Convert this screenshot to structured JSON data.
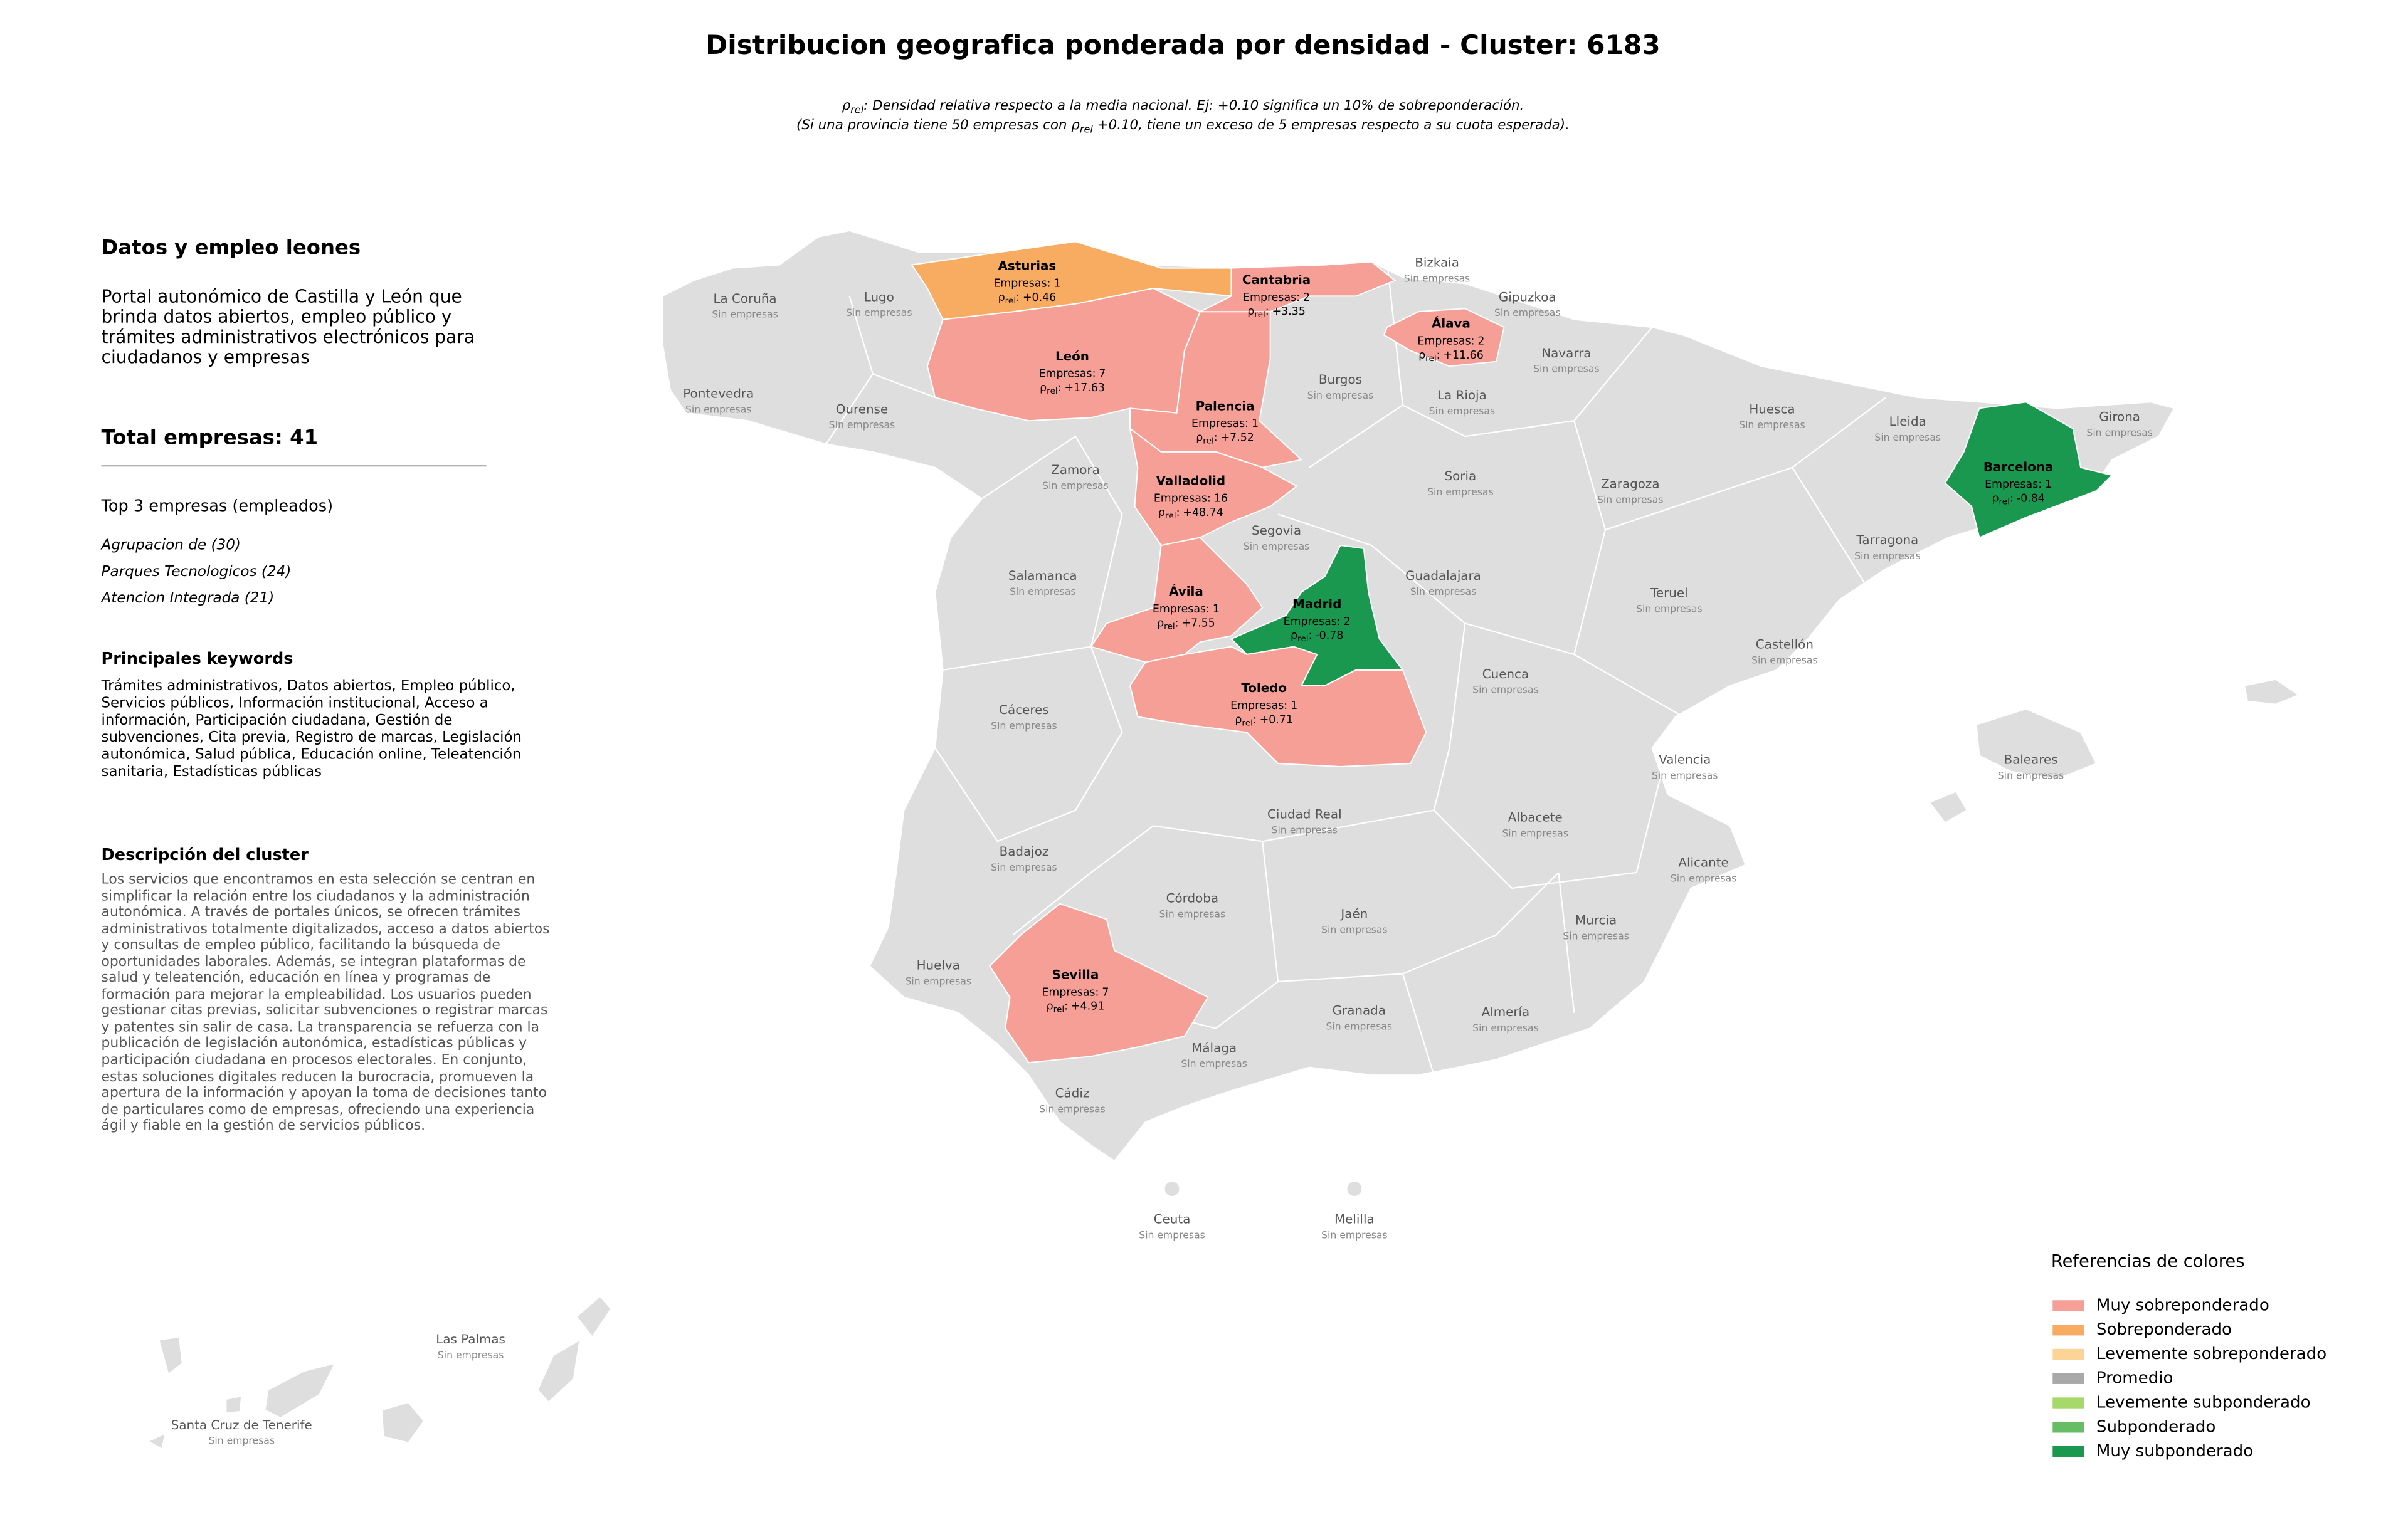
{
  "title": "Distribucion geografica ponderada por densidad - Cluster: 6183",
  "note": [
    [
      {
        "text": "ρ"
      },
      {
        "sub": "rel"
      },
      {
        "text": ": Densidad relativa respecto a la media nacional. Ej: +0.10 significa un 10% de sobreponderación."
      }
    ],
    [
      {
        "text": "(Si una provincia tiene 50 empresas con ρ"
      },
      {
        "sub": "rel"
      },
      {
        "text": " +0.10, tiene un exceso de 5 empresas respecto a su cuota esperada)."
      }
    ]
  ],
  "sidebar": {
    "heading": "Datos y empleo leones",
    "description": "Portal autonómico de Castilla y León que brinda datos abiertos, empleo público y trámites administrativos electrónicos para ciudadanos y empresas",
    "total_label": "Total empresas:",
    "total": 41,
    "top_title": "Top 3 empresas (empleados)",
    "top": [
      "Agrupacion de (30)",
      "Parques Tecnologicos (24)",
      "Atencion Integrada (21)"
    ],
    "keywords_title": "Principales keywords",
    "keywords": "Trámites administrativos, Datos abiertos, Empleo público, Servicios públicos, Información institucional, Acceso a información, Participación ciudadana, Gestión de subvenciones, Cita previa, Registro de marcas, Legislación autonómica, Salud pública, Educación online, Teleatención sanitaria, Estadísticas públicas",
    "cluster_title": "Descripción del cluster",
    "cluster_text": "Los servicios que encontramos en esta selección se centran en simplificar la relación entre los ciudadanos y la administración autonómica. A través de portales únicos, se ofrecen trámites administrativos totalmente digitalizados, acceso a datos abiertos y consultas de empleo público, facilitando la búsqueda de oportunidades laborales. Además, se integran plataformas de salud y teleatención, educación en línea y programas de formación para mejorar la empleabilidad. Los usuarios pueden gestionar citas previas, solicitar subvenciones o registrar marcas y patentes sin salir de casa. La transparencia se refuerza con la publicación de legislación autonómica, estadísticas públicas y participación ciudadana en procesos electorales. En conjunto, estas soluciones digitales reducen la burocracia, promueven la apertura de la información y apoyan la toma de decisiones tanto de particulares como de empresas, ofreciendo una experiencia ágil y fiable en la gestión de servicios públicos."
  },
  "map": {
    "sin_empresas": "Sin empresas",
    "empresas_label": "Empresas:",
    "rho_symbol": "ρ",
    "rho_sub": "rel",
    "rho_sep": ":",
    "provinces": [
      {
        "name": "La Coruña"
      },
      {
        "name": "Lugo"
      },
      {
        "name": "Asturias",
        "empresas": 1,
        "rho": 0.46,
        "rho_label": "+0.46",
        "category": "Sobreponderado"
      },
      {
        "name": "Cantabria",
        "empresas": 2,
        "rho": 3.35,
        "rho_label": "+3.35",
        "category": "Muy sobreponderado"
      },
      {
        "name": "Bizkaia"
      },
      {
        "name": "Gipuzkoa"
      },
      {
        "name": "Álava",
        "empresas": 2,
        "rho": 11.66,
        "rho_label": "+11.66",
        "category": "Muy sobreponderado"
      },
      {
        "name": "Navarra"
      },
      {
        "name": "León",
        "empresas": 7,
        "rho": 17.63,
        "rho_label": "+17.63",
        "category": "Muy sobreponderado"
      },
      {
        "name": "Palencia",
        "empresas": 1,
        "rho": 7.52,
        "rho_label": "+7.52",
        "category": "Muy sobreponderado"
      },
      {
        "name": "Burgos"
      },
      {
        "name": "La Rioja"
      },
      {
        "name": "Pontevedra"
      },
      {
        "name": "Ourense"
      },
      {
        "name": "Huesca"
      },
      {
        "name": "Lleida"
      },
      {
        "name": "Girona"
      },
      {
        "name": "Barcelona",
        "empresas": 1,
        "rho": -0.84,
        "rho_label": "-0.84",
        "category": "Muy subponderado"
      },
      {
        "name": "Zamora"
      },
      {
        "name": "Valladolid",
        "empresas": 16,
        "rho": 48.74,
        "rho_label": "+48.74",
        "category": "Muy sobreponderado"
      },
      {
        "name": "Soria"
      },
      {
        "name": "Zaragoza"
      },
      {
        "name": "Segovia"
      },
      {
        "name": "Tarragona"
      },
      {
        "name": "Salamanca"
      },
      {
        "name": "Guadalajara"
      },
      {
        "name": "Teruel"
      },
      {
        "name": "Ávila",
        "empresas": 1,
        "rho": 7.55,
        "rho_label": "+7.55",
        "category": "Muy sobreponderado"
      },
      {
        "name": "Madrid",
        "empresas": 2,
        "rho": -0.78,
        "rho_label": "-0.78",
        "category": "Muy subponderado"
      },
      {
        "name": "Castellón"
      },
      {
        "name": "Cuenca"
      },
      {
        "name": "Toledo",
        "empresas": 1,
        "rho": 0.71,
        "rho_label": "+0.71",
        "category": "Muy sobreponderado"
      },
      {
        "name": "Cáceres"
      },
      {
        "name": "Baleares"
      },
      {
        "name": "Valencia"
      },
      {
        "name": "Ciudad Real"
      },
      {
        "name": "Albacete"
      },
      {
        "name": "Badajoz"
      },
      {
        "name": "Alicante"
      },
      {
        "name": "Córdoba"
      },
      {
        "name": "Jaén"
      },
      {
        "name": "Murcia"
      },
      {
        "name": "Huelva"
      },
      {
        "name": "Sevilla",
        "empresas": 7,
        "rho": 4.91,
        "rho_label": "+4.91",
        "category": "Muy sobreponderado"
      },
      {
        "name": "Granada"
      },
      {
        "name": "Almería"
      },
      {
        "name": "Málaga"
      },
      {
        "name": "Cádiz"
      },
      {
        "name": "Ceuta"
      },
      {
        "name": "Melilla"
      },
      {
        "name": "Las Palmas"
      },
      {
        "name": "Santa Cruz de Tenerife"
      }
    ]
  },
  "legend": {
    "title": "Referencias de colores",
    "items": [
      {
        "name": "Muy sobreponderado",
        "color": "#f69f97"
      },
      {
        "name": "Sobreponderado",
        "color": "#f8ac62"
      },
      {
        "name": "Levemente sobreponderado",
        "color": "#fdd497"
      },
      {
        "name": "Promedio",
        "color": "#a9a9a9"
      },
      {
        "name": "Levemente subponderado",
        "color": "#a6d96a"
      },
      {
        "name": "Subponderado",
        "color": "#66bd63"
      },
      {
        "name": "Muy subponderado",
        "color": "#1a9850"
      }
    ]
  }
}
